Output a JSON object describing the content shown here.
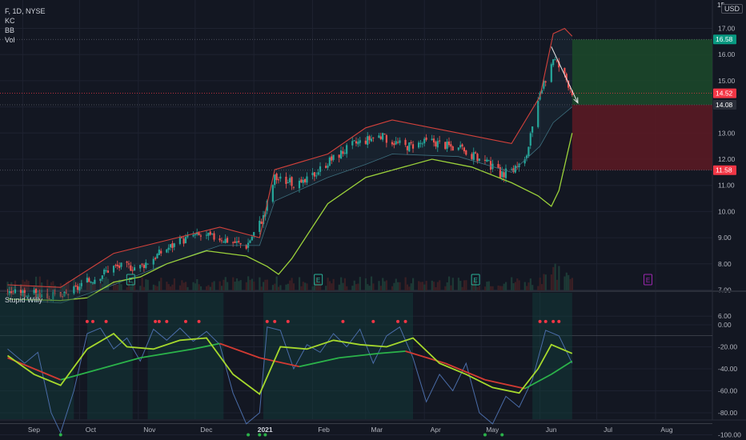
{
  "header": {
    "symbol_line": "F, 1D, NYSE",
    "indicators": [
      "KC",
      "BB",
      "Vol"
    ],
    "currency": "USD",
    "currency_mark": "1$"
  },
  "lower_pane": {
    "title": "Stupid Willy"
  },
  "colors": {
    "background": "#131722",
    "grid": "#1e2230",
    "up": "#26a69a",
    "down": "#ef5350",
    "keltner": "#d2413b",
    "bollinger": "#9bd13a",
    "osc_line": "#4a6ca8",
    "osc_fast": "#a6d92c",
    "osc_slow_up": "#2bb34a",
    "osc_slow_down": "#d23a32",
    "profit_zone": "#1c4a2a",
    "loss_zone": "#5a1a24"
  },
  "chart_data": [
    {
      "type": "candlestick",
      "title": "F, 1D, NYSE",
      "x_tick_labels": [
        "Sep",
        "Oct",
        "Nov",
        "Dec",
        "2021",
        "Feb",
        "Mar",
        "Apr",
        "May",
        "Jun",
        "Jul",
        "Aug"
      ],
      "y_tick_labels": [
        "6.00",
        "7.00",
        "8.00",
        "9.00",
        "10.00",
        "11.00",
        "12.00",
        "13.00",
        "14.00",
        "15.00",
        "16.00",
        "17.00"
      ],
      "ylim": [
        5.6,
        17.4
      ],
      "grid": true,
      "close_path": [
        [
          "2020-08-24",
          6.9
        ],
        [
          "2020-09-07",
          6.85
        ],
        [
          "2020-09-21",
          6.7
        ],
        [
          "2020-10-05",
          7.3
        ],
        [
          "2020-10-19",
          7.9
        ],
        [
          "2020-11-02",
          7.9
        ],
        [
          "2020-11-16",
          8.6
        ],
        [
          "2020-11-30",
          9.1
        ],
        [
          "2020-12-14",
          9.0
        ],
        [
          "2020-12-28",
          8.7
        ],
        [
          "2021-01-06",
          9.8
        ],
        [
          "2021-01-12",
          11.3
        ],
        [
          "2021-01-26",
          11.0
        ],
        [
          "2021-02-09",
          11.9
        ],
        [
          "2021-02-23",
          12.6
        ],
        [
          "2021-03-08",
          12.9
        ],
        [
          "2021-03-22",
          12.5
        ],
        [
          "2021-04-05",
          12.7
        ],
        [
          "2021-04-19",
          12.4
        ],
        [
          "2021-05-03",
          11.9
        ],
        [
          "2021-05-12",
          11.4
        ],
        [
          "2021-05-24",
          11.9
        ],
        [
          "2021-06-01",
          14.4
        ],
        [
          "2021-06-08",
          15.9
        ],
        [
          "2021-06-14",
          15.2
        ],
        [
          "2021-06-18",
          14.6
        ]
      ],
      "keltner_upper": [
        [
          "2020-08-24",
          7.2
        ],
        [
          "2020-09-21",
          7.1
        ],
        [
          "2020-10-19",
          8.4
        ],
        [
          "2020-11-16",
          8.9
        ],
        [
          "2020-12-14",
          9.4
        ],
        [
          "2021-01-04",
          9.0
        ],
        [
          "2021-01-12",
          11.6
        ],
        [
          "2021-02-09",
          12.2
        ],
        [
          "2021-03-01",
          13.2
        ],
        [
          "2021-03-15",
          13.5
        ],
        [
          "2021-04-19",
          13.0
        ],
        [
          "2021-05-17",
          12.6
        ],
        [
          "2021-06-01",
          14.4
        ],
        [
          "2021-06-08",
          16.8
        ],
        [
          "2021-06-14",
          17.0
        ],
        [
          "2021-06-18",
          16.7
        ]
      ],
      "keltner_lower": [
        [
          "2020-08-24",
          6.65
        ],
        [
          "2020-09-21",
          6.5
        ],
        [
          "2020-10-19",
          7.2
        ],
        [
          "2020-11-16",
          8.0
        ],
        [
          "2020-12-14",
          8.7
        ],
        [
          "2021-01-04",
          8.7
        ],
        [
          "2021-01-12",
          10.4
        ],
        [
          "2021-02-09",
          11.3
        ],
        [
          "2021-03-01",
          11.8
        ],
        [
          "2021-03-15",
          12.2
        ],
        [
          "2021-04-19",
          12.1
        ],
        [
          "2021-05-17",
          11.5
        ],
        [
          "2021-06-01",
          12.5
        ],
        [
          "2021-06-08",
          13.4
        ],
        [
          "2021-06-18",
          14.0
        ]
      ],
      "bollinger_lower": [
        [
          "2020-08-24",
          6.65
        ],
        [
          "2020-09-21",
          6.6
        ],
        [
          "2020-10-05",
          6.7
        ],
        [
          "2020-10-19",
          7.3
        ],
        [
          "2020-11-02",
          7.5
        ],
        [
          "2020-11-16",
          8.0
        ],
        [
          "2020-12-07",
          8.5
        ],
        [
          "2020-12-28",
          8.3
        ],
        [
          "2021-01-08",
          7.9
        ],
        [
          "2021-01-14",
          7.6
        ],
        [
          "2021-01-21",
          8.2
        ],
        [
          "2021-02-09",
          10.3
        ],
        [
          "2021-03-01",
          11.3
        ],
        [
          "2021-04-05",
          12.0
        ],
        [
          "2021-04-26",
          11.7
        ],
        [
          "2021-05-17",
          11.1
        ],
        [
          "2021-05-31",
          10.6
        ],
        [
          "2021-06-07",
          10.2
        ],
        [
          "2021-06-11",
          10.8
        ],
        [
          "2021-06-18",
          13.0
        ]
      ],
      "earnings_markers": [
        "2020-10-28",
        "2021-02-04",
        "2021-04-28",
        "2021-07-28"
      ],
      "earnings_label": "E",
      "price_labels": [
        {
          "value": 16.58,
          "text": "16.58",
          "color": "#089981"
        },
        {
          "value": 14.52,
          "text": "14.52",
          "color": "#f23645"
        },
        {
          "value": 14.08,
          "text": "14.08",
          "color": "#2a2e39"
        },
        {
          "value": 11.58,
          "text": "11.58",
          "color": "#f23645"
        }
      ],
      "profit_zone": {
        "from_date": "2021-06-18",
        "top": 16.58,
        "bottom": 14.08
      },
      "loss_zone": {
        "from_date": "2021-06-18",
        "top": 14.08,
        "bottom": 11.58
      },
      "trend_arrow": {
        "from": [
          "2021-06-07",
          16.3
        ],
        "to": [
          "2021-06-21",
          14.15
        ]
      }
    },
    {
      "type": "line",
      "title": "Stupid Willy",
      "y_tick_labels": [
        "0.00",
        "-20.00",
        "-40.00",
        "-60.00",
        "-80.00",
        "-100.00"
      ],
      "ylim": [
        -108,
        8
      ],
      "grid": true,
      "series": [
        {
          "values": [
            [
              "2020-08-24",
              -22
            ],
            [
              "2020-09-02",
              -35
            ],
            [
              "2020-09-09",
              -25
            ],
            [
              "2020-09-16",
              -80
            ],
            [
              "2020-09-21",
              -98
            ],
            [
              "2020-09-28",
              -60
            ],
            [
              "2020-10-05",
              -8
            ],
            [
              "2020-10-12",
              -3
            ],
            [
              "2020-10-19",
              -22
            ],
            [
              "2020-10-26",
              -12
            ],
            [
              "2020-11-02",
              -33
            ],
            [
              "2020-11-09",
              -4
            ],
            [
              "2020-11-16",
              -14
            ],
            [
              "2020-11-23",
              -3
            ],
            [
              "2020-11-30",
              -15
            ],
            [
              "2020-12-07",
              -6
            ],
            [
              "2020-12-14",
              -18
            ],
            [
              "2020-12-21",
              -62
            ],
            [
              "2020-12-28",
              -90
            ],
            [
              "2021-01-04",
              -80
            ],
            [
              "2021-01-08",
              -2
            ],
            [
              "2021-01-15",
              -5
            ],
            [
              "2021-01-22",
              -40
            ],
            [
              "2021-01-29",
              -18
            ],
            [
              "2021-02-05",
              -25
            ],
            [
              "2021-02-12",
              -8
            ],
            [
              "2021-02-19",
              -20
            ],
            [
              "2021-02-26",
              -4
            ],
            [
              "2021-03-05",
              -35
            ],
            [
              "2021-03-12",
              -10
            ],
            [
              "2021-03-19",
              -2
            ],
            [
              "2021-03-26",
              -30
            ],
            [
              "2021-04-02",
              -70
            ],
            [
              "2021-04-09",
              -45
            ],
            [
              "2021-04-16",
              -60
            ],
            [
              "2021-04-23",
              -35
            ],
            [
              "2021-04-30",
              -80
            ],
            [
              "2021-05-07",
              -90
            ],
            [
              "2021-05-14",
              -65
            ],
            [
              "2021-05-21",
              -75
            ],
            [
              "2021-05-28",
              -50
            ],
            [
              "2021-06-04",
              -5
            ],
            [
              "2021-06-11",
              -10
            ],
            [
              "2021-06-18",
              -35
            ]
          ]
        },
        {
          "values": [
            [
              "2020-08-24",
              -28
            ],
            [
              "2020-09-07",
              -45
            ],
            [
              "2020-09-21",
              -55
            ],
            [
              "2020-10-05",
              -22
            ],
            [
              "2020-10-19",
              -8
            ],
            [
              "2020-10-26",
              -20
            ],
            [
              "2020-11-09",
              -22
            ],
            [
              "2020-11-23",
              -14
            ],
            [
              "2020-12-07",
              -12
            ],
            [
              "2020-12-21",
              -45
            ],
            [
              "2021-01-04",
              -63
            ],
            [
              "2021-01-15",
              -20
            ],
            [
              "2021-01-29",
              -22
            ],
            [
              "2021-02-12",
              -14
            ],
            [
              "2021-02-26",
              -18
            ],
            [
              "2021-03-12",
              -20
            ],
            [
              "2021-03-26",
              -12
            ],
            [
              "2021-04-09",
              -35
            ],
            [
              "2021-04-23",
              -45
            ],
            [
              "2021-05-07",
              -57
            ],
            [
              "2021-05-21",
              -62
            ],
            [
              "2021-05-31",
              -40
            ],
            [
              "2021-06-07",
              -18
            ],
            [
              "2021-06-18",
              -26
            ]
          ]
        },
        {
          "values": [
            [
              "2020-08-24",
              -30
            ],
            [
              "2020-09-21",
              -50
            ],
            [
              "2020-10-12",
              -40
            ],
            [
              "2020-11-02",
              -30
            ],
            [
              "2020-11-30",
              -22
            ],
            [
              "2020-12-14",
              -17
            ],
            [
              "2021-01-04",
              -30
            ],
            [
              "2021-01-25",
              -38
            ],
            [
              "2021-02-15",
              -30
            ],
            [
              "2021-03-08",
              -26
            ],
            [
              "2021-03-22",
              -24
            ],
            [
              "2021-04-12",
              -35
            ],
            [
              "2021-05-03",
              -50
            ],
            [
              "2021-05-24",
              -58
            ],
            [
              "2021-06-07",
              -45
            ],
            [
              "2021-06-18",
              -33
            ]
          ]
        }
      ],
      "signal_dots_top": [
        "2020-10-05",
        "2020-10-08",
        "2020-10-15",
        "2020-11-10",
        "2020-11-12",
        "2020-11-16",
        "2020-11-26",
        "2020-12-03",
        "2021-01-08",
        "2021-01-12",
        "2021-01-19",
        "2021-02-17",
        "2021-03-05",
        "2021-03-18",
        "2021-03-22",
        "2021-06-01",
        "2021-06-04",
        "2021-06-08",
        "2021-06-11"
      ],
      "signal_dots_bottom": [
        "2020-09-21",
        "2020-12-29",
        "2021-01-04",
        "2021-01-07",
        "2021-05-03",
        "2021-05-12"
      ]
    }
  ]
}
